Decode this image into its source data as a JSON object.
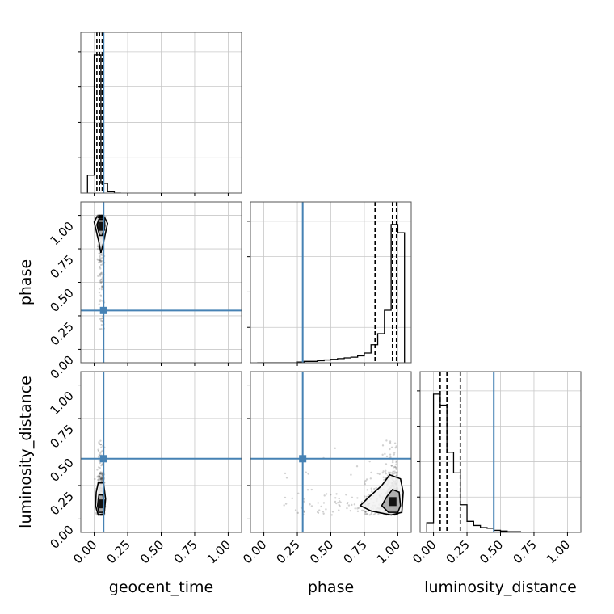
{
  "chart_data": {
    "type": "corner",
    "parameters": [
      "geocent_time",
      "phase",
      "luminosity_distance"
    ],
    "xlabels": [
      "geocent_time",
      "phase",
      "luminosity_distance"
    ],
    "ylabels": [
      "",
      "phase",
      "luminosity_distance"
    ],
    "tick_values": [
      0.0,
      0.25,
      0.5,
      0.75,
      1.0
    ],
    "tick_labels": [
      "0.00",
      "0.25",
      "0.50",
      "0.75",
      "1.00"
    ],
    "axis_range": [
      -0.1,
      1.1
    ],
    "grid": true,
    "truths": {
      "geocent_time": 0.07,
      "phase": 0.29,
      "luminosity_distance": 0.45
    },
    "truth_color": "#4682b4",
    "histograms": [
      {
        "parameter": "geocent_time",
        "bin_edges": [
          -0.05,
          0.0,
          0.05,
          0.1,
          0.15,
          0.2
        ],
        "counts": [
          0.13,
          1.0,
          0.07,
          0.01,
          0.0
        ],
        "quantiles": [
          0.02,
          0.04,
          0.06
        ]
      },
      {
        "parameter": "phase",
        "bin_edges": [
          -0.05,
          0.0,
          0.05,
          0.1,
          0.15,
          0.2,
          0.25,
          0.3,
          0.35,
          0.4,
          0.45,
          0.5,
          0.55,
          0.6,
          0.65,
          0.7,
          0.75,
          0.8,
          0.85,
          0.9,
          0.95,
          1.0,
          1.05
        ],
        "counts": [
          0.0,
          0.0,
          0.0,
          0.0,
          0.0,
          0.0,
          0.005,
          0.01,
          0.01,
          0.015,
          0.02,
          0.025,
          0.03,
          0.035,
          0.04,
          0.05,
          0.07,
          0.13,
          0.21,
          0.38,
          1.0,
          0.94
        ],
        "quantiles": [
          0.83,
          0.96,
          0.99
        ]
      },
      {
        "parameter": "luminosity_distance",
        "bin_edges": [
          -0.05,
          0.0,
          0.05,
          0.1,
          0.15,
          0.2,
          0.25,
          0.3,
          0.35,
          0.4,
          0.45,
          0.5,
          0.55,
          0.6,
          0.65,
          0.7,
          0.75
        ],
        "counts": [
          0.07,
          1.0,
          0.92,
          0.58,
          0.43,
          0.2,
          0.08,
          0.05,
          0.035,
          0.03,
          0.015,
          0.01,
          0.005,
          0.005,
          0.0,
          0.0
        ],
        "quantiles": [
          0.05,
          0.1,
          0.2
        ]
      }
    ],
    "scatter_panels": [
      {
        "x": "geocent_time",
        "y": "phase",
        "x_center": 0.05,
        "x_spread": 0.015,
        "y_profile": "concentrated near 1.0 with tail down to 0.4",
        "contours": [
          {
            "level": "outer",
            "points": [
              [
                0.04,
                0.98
              ],
              [
                0.08,
                0.98
              ],
              [
                0.1,
                0.94
              ],
              [
                0.07,
                0.8
              ],
              [
                0.05,
                0.72
              ],
              [
                0.035,
                0.8
              ],
              [
                0.0,
                0.95
              ],
              [
                0.02,
                0.99
              ]
            ]
          },
          {
            "level": "inner",
            "points": [
              [
                0.035,
                0.97
              ],
              [
                0.075,
                0.97
              ],
              [
                0.08,
                0.92
              ],
              [
                0.06,
                0.85
              ],
              [
                0.04,
                0.85
              ],
              [
                0.02,
                0.93
              ]
            ]
          }
        ]
      },
      {
        "x": "geocent_time",
        "y": "luminosity_distance",
        "x_center": 0.05,
        "x_spread": 0.015,
        "y_profile": "concentrated near 0.05-0.15 with tail up to 0.6",
        "contours": [
          {
            "level": "outer",
            "points": [
              [
                0.03,
                0.27
              ],
              [
                0.07,
                0.27
              ],
              [
                0.085,
                0.15
              ],
              [
                0.075,
                0.04
              ],
              [
                0.03,
                0.03
              ],
              [
                0.01,
                0.1
              ],
              [
                0.015,
                0.2
              ]
            ]
          },
          {
            "level": "inner",
            "points": [
              [
                0.035,
                0.18
              ],
              [
                0.065,
                0.18
              ],
              [
                0.075,
                0.1
              ],
              [
                0.065,
                0.05
              ],
              [
                0.035,
                0.05
              ],
              [
                0.025,
                0.1
              ]
            ]
          }
        ]
      },
      {
        "x": "phase",
        "y": "luminosity_distance",
        "x_profile": "concentrated near 0.95-1.0 with tail down to 0.15",
        "y_profile": "concentrated near 0.05-0.15 with tail up to 0.6",
        "contours": [
          {
            "level": "outer",
            "points": [
              [
                0.94,
                0.33
              ],
              [
                1.02,
                0.3
              ],
              [
                1.04,
                0.2
              ],
              [
                1.03,
                0.05
              ],
              [
                0.95,
                0.03
              ],
              [
                0.8,
                0.06
              ],
              [
                0.72,
                0.1
              ],
              [
                0.78,
                0.16
              ],
              [
                0.88,
                0.25
              ]
            ]
          },
          {
            "level": "inner",
            "points": [
              [
                0.96,
                0.22
              ],
              [
                1.01,
                0.2
              ],
              [
                1.02,
                0.1
              ],
              [
                1.0,
                0.05
              ],
              [
                0.93,
                0.05
              ],
              [
                0.88,
                0.1
              ],
              [
                0.92,
                0.17
              ]
            ]
          }
        ]
      }
    ]
  }
}
